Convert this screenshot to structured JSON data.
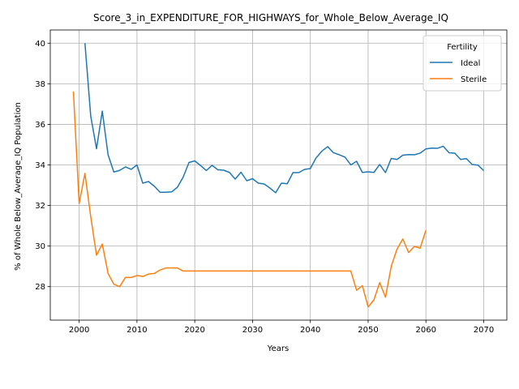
{
  "chart_data": {
    "type": "line",
    "title": "Score_3_in_EXPENDITURE_FOR_HIGHWAYS_for_Whole_Below_Average_IQ",
    "xlabel": "Years",
    "ylabel": "% of Whole Below_Average_IQ Population",
    "xlim": [
      1995,
      2074
    ],
    "ylim": [
      26.35,
      40.65
    ],
    "xticks": [
      2000,
      2010,
      2020,
      2030,
      2040,
      2050,
      2060,
      2070
    ],
    "yticks": [
      28,
      30,
      32,
      34,
      36,
      38,
      40
    ],
    "grid": true,
    "legend": {
      "title": "Fertility",
      "placement": "top-right"
    },
    "series": [
      {
        "name": "Ideal",
        "color": "#1f77b4",
        "x": [
          2001,
          2002,
          2003,
          2004,
          2005,
          2006,
          2007,
          2008,
          2009,
          2010,
          2011,
          2012,
          2013,
          2014,
          2015,
          2016,
          2017,
          2018,
          2019,
          2020,
          2021,
          2022,
          2023,
          2024,
          2025,
          2026,
          2027,
          2028,
          2029,
          2030,
          2031,
          2032,
          2033,
          2034,
          2035,
          2036,
          2037,
          2038,
          2039,
          2040,
          2041,
          2042,
          2043,
          2044,
          2045,
          2046,
          2047,
          2048,
          2049,
          2050,
          2051,
          2052,
          2053,
          2054,
          2055,
          2056,
          2057,
          2058,
          2059,
          2060,
          2061,
          2062,
          2063,
          2064,
          2065,
          2066,
          2067,
          2068,
          2069,
          2070
        ],
        "values": [
          40.0,
          36.4,
          34.8,
          36.65,
          34.5,
          33.65,
          33.73,
          33.9,
          33.78,
          34.0,
          33.1,
          33.18,
          32.95,
          32.65,
          32.65,
          32.67,
          32.9,
          33.4,
          34.12,
          34.2,
          33.97,
          33.72,
          33.98,
          33.76,
          33.74,
          33.63,
          33.3,
          33.64,
          33.22,
          33.32,
          33.1,
          33.06,
          32.86,
          32.63,
          33.1,
          33.07,
          33.62,
          33.62,
          33.78,
          33.82,
          34.35,
          34.68,
          34.9,
          34.6,
          34.5,
          34.38,
          34.0,
          34.18,
          33.63,
          33.66,
          33.63,
          34.02,
          33.62,
          34.32,
          34.27,
          34.48,
          34.51,
          34.5,
          34.58,
          34.79,
          34.83,
          34.82,
          34.92,
          34.6,
          34.58,
          34.27,
          34.31,
          34.02,
          33.99,
          33.72
        ]
      },
      {
        "name": "Sterile",
        "color": "#ff7f0e",
        "x": [
          1999,
          2000,
          2001,
          2002,
          2003,
          2004,
          2005,
          2006,
          2007,
          2008,
          2009,
          2010,
          2011,
          2012,
          2013,
          2014,
          2015,
          2016,
          2017,
          2018,
          2019,
          2020,
          2021,
          2022,
          2023,
          2024,
          2025,
          2026,
          2027,
          2028,
          2029,
          2030,
          2031,
          2032,
          2033,
          2034,
          2035,
          2036,
          2037,
          2038,
          2039,
          2040,
          2041,
          2042,
          2043,
          2044,
          2045,
          2046,
          2047,
          2048,
          2049,
          2050,
          2051,
          2052,
          2053,
          2054,
          2055,
          2056,
          2057,
          2058,
          2059,
          2060
        ],
        "values": [
          37.62,
          32.1,
          33.58,
          31.45,
          29.55,
          30.1,
          28.65,
          28.12,
          28.0,
          28.45,
          28.45,
          28.55,
          28.5,
          28.62,
          28.65,
          28.82,
          28.92,
          28.92,
          28.92,
          28.77,
          28.77,
          28.77,
          28.77,
          28.77,
          28.77,
          28.77,
          28.77,
          28.77,
          28.77,
          28.77,
          28.77,
          28.77,
          28.77,
          28.77,
          28.77,
          28.77,
          28.77,
          28.77,
          28.77,
          28.77,
          28.77,
          28.77,
          28.77,
          28.77,
          28.77,
          28.77,
          28.77,
          28.77,
          28.77,
          27.82,
          28.05,
          27.0,
          27.35,
          28.2,
          27.48,
          29.0,
          29.85,
          30.35,
          29.68,
          29.98,
          29.9,
          30.78
        ]
      }
    ]
  }
}
